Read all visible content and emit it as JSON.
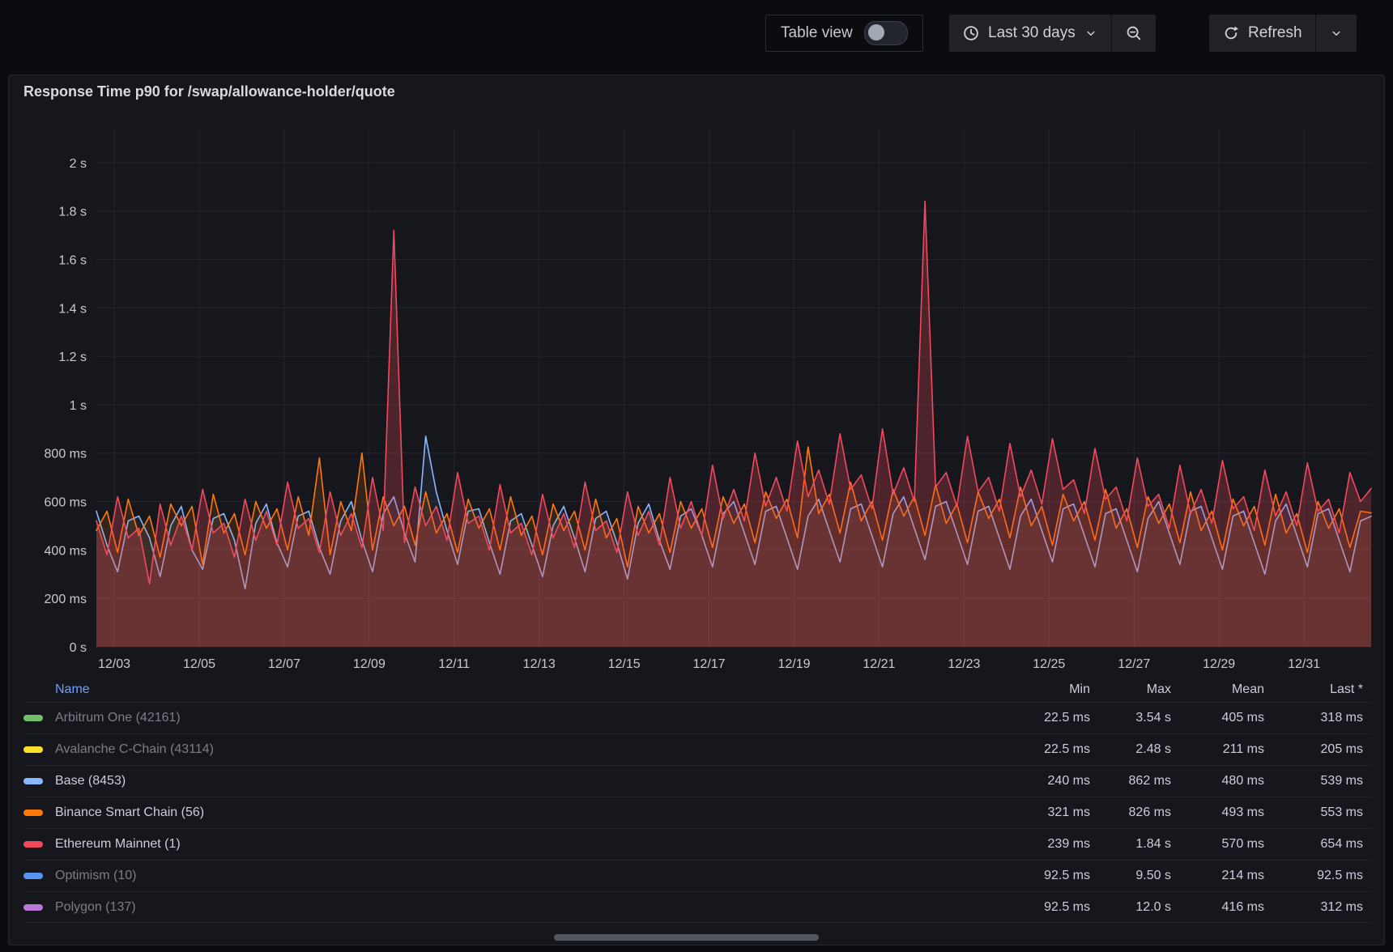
{
  "toolbar": {
    "table_view_label": "Table view",
    "table_view_on": false,
    "time_range_label": "Last 30 days",
    "refresh_label": "Refresh"
  },
  "panel": {
    "title": "Response Time p90 for /swap/allowance-holder/quote"
  },
  "chart_data": {
    "type": "line",
    "title": "Response Time p90 for /swap/allowance-holder/quote",
    "grid": true,
    "legend_position": "bottom-table",
    "x_domain_days": [
      0,
      30
    ],
    "x_tick_days": [
      0.42,
      2.42,
      4.42,
      6.42,
      8.42,
      10.42,
      12.42,
      14.42,
      16.42,
      18.42,
      20.42,
      22.42,
      24.42,
      26.42,
      28.42
    ],
    "x_tick_labels": [
      "12/03",
      "12/05",
      "12/07",
      "12/09",
      "12/11",
      "12/13",
      "12/15",
      "12/17",
      "12/19",
      "12/21",
      "12/23",
      "12/25",
      "12/27",
      "12/29",
      "12/31"
    ],
    "y_tick_values_ms": [
      0,
      200,
      400,
      600,
      800,
      1000,
      1200,
      1400,
      1600,
      1800,
      2000
    ],
    "y_tick_labels": [
      "0 s",
      "200 ms",
      "400 ms",
      "600 ms",
      "800 ms",
      "1 s",
      "1.2 s",
      "1.4 s",
      "1.6 s",
      "1.8 s",
      "2 s"
    ],
    "ylim_ms": [
      0,
      2140
    ],
    "units": "milliseconds",
    "series": [
      {
        "name": "Base (8453)",
        "color": "#8AB8FF",
        "fill_opacity": 0.07,
        "points_ms": [
          560,
          420,
          310,
          520,
          540,
          450,
          290,
          500,
          580,
          400,
          320,
          530,
          550,
          440,
          240,
          510,
          590,
          430,
          330,
          540,
          560,
          410,
          300,
          520,
          600,
          440,
          310,
          550,
          620,
          470,
          350,
          870,
          640,
          480,
          340,
          560,
          570,
          430,
          300,
          520,
          550,
          420,
          290,
          500,
          580,
          450,
          310,
          530,
          560,
          430,
          280,
          510,
          590,
          440,
          320,
          540,
          570,
          460,
          330,
          550,
          600,
          470,
          340,
          560,
          580,
          450,
          320,
          540,
          610,
          480,
          350,
          570,
          590,
          460,
          330,
          550,
          620,
          490,
          360,
          580,
          600,
          470,
          340,
          560,
          580,
          450,
          320,
          540,
          610,
          480,
          350,
          570,
          590,
          460,
          330,
          550,
          570,
          440,
          310,
          530,
          600,
          470,
          340,
          560,
          580,
          450,
          320,
          540,
          560,
          430,
          300,
          520,
          590,
          460,
          330,
          550,
          570,
          440,
          310,
          520,
          539
        ]
      },
      {
        "name": "Binance Smart Chain (56)",
        "color": "#FF780A",
        "fill_opacity": 0.13,
        "points_ms": [
          480,
          560,
          390,
          610,
          460,
          540,
          370,
          590,
          500,
          580,
          340,
          630,
          470,
          550,
          380,
          600,
          490,
          570,
          400,
          620,
          460,
          780,
          380,
          600,
          480,
          800,
          400,
          620,
          500,
          580,
          420,
          640,
          470,
          550,
          390,
          610,
          490,
          570,
          400,
          620,
          460,
          540,
          380,
          590,
          480,
          560,
          400,
          610,
          450,
          530,
          330,
          580,
          470,
          550,
          390,
          600,
          490,
          570,
          410,
          620,
          510,
          590,
          430,
          640,
          530,
          610,
          450,
          826,
          550,
          630,
          470,
          680,
          520,
          600,
          440,
          650,
          540,
          620,
          460,
          670,
          510,
          590,
          430,
          640,
          530,
          610,
          450,
          660,
          500,
          580,
          420,
          630,
          520,
          600,
          440,
          650,
          490,
          570,
          410,
          620,
          510,
          590,
          430,
          640,
          480,
          560,
          400,
          610,
          500,
          580,
          420,
          630,
          470,
          550,
          390,
          600,
          490,
          570,
          410,
          560,
          553
        ]
      },
      {
        "name": "Ethereum Mainnet (1)",
        "color": "#F2495C",
        "fill_opacity": 0.25,
        "points_ms": [
          520,
          380,
          620,
          450,
          490,
          260,
          590,
          420,
          540,
          400,
          650,
          470,
          510,
          370,
          610,
          440,
          560,
          420,
          680,
          490,
          530,
          390,
          640,
          460,
          550,
          410,
          700,
          480,
          1720,
          430,
          660,
          500,
          580,
          440,
          720,
          510,
          540,
          400,
          670,
          470,
          510,
          380,
          630,
          450,
          550,
          410,
          680,
          480,
          520,
          390,
          640,
          460,
          560,
          420,
          700,
          490,
          600,
          460,
          750,
          530,
          650,
          520,
          800,
          580,
          700,
          560,
          850,
          620,
          730,
          590,
          880,
          650,
          710,
          570,
          900,
          630,
          740,
          600,
          1840,
          660,
          720,
          580,
          870,
          640,
          700,
          560,
          840,
          620,
          730,
          590,
          860,
          650,
          690,
          550,
          820,
          610,
          660,
          520,
          780,
          580,
          630,
          490,
          750,
          550,
          650,
          510,
          770,
          570,
          620,
          480,
          730,
          540,
          640,
          500,
          760,
          560,
          610,
          470,
          720,
          600,
          654
        ]
      }
    ]
  },
  "legend": {
    "columns": [
      "Name",
      "Min",
      "Max",
      "Mean",
      "Last *"
    ],
    "rows": [
      {
        "name": "Arbitrum One (42161)",
        "color": "#73BF69",
        "visible": false,
        "min": "22.5 ms",
        "max": "3.54 s",
        "mean": "405 ms",
        "last": "318 ms"
      },
      {
        "name": "Avalanche C-Chain (43114)",
        "color": "#FADE2A",
        "visible": false,
        "min": "22.5 ms",
        "max": "2.48 s",
        "mean": "211 ms",
        "last": "205 ms"
      },
      {
        "name": "Base (8453)",
        "color": "#8AB8FF",
        "visible": true,
        "min": "240 ms",
        "max": "862 ms",
        "mean": "480 ms",
        "last": "539 ms"
      },
      {
        "name": "Binance Smart Chain (56)",
        "color": "#FF780A",
        "visible": true,
        "min": "321 ms",
        "max": "826 ms",
        "mean": "493 ms",
        "last": "553 ms"
      },
      {
        "name": "Ethereum Mainnet (1)",
        "color": "#F2495C",
        "visible": true,
        "min": "239 ms",
        "max": "1.84 s",
        "mean": "570 ms",
        "last": "654 ms"
      },
      {
        "name": "Optimism (10)",
        "color": "#5794F2",
        "visible": false,
        "min": "92.5 ms",
        "max": "9.50 s",
        "mean": "214 ms",
        "last": "92.5 ms"
      },
      {
        "name": "Polygon (137)",
        "color": "#B877D9",
        "visible": false,
        "min": "92.5 ms",
        "max": "12.0 s",
        "mean": "416 ms",
        "last": "312 ms"
      }
    ]
  }
}
